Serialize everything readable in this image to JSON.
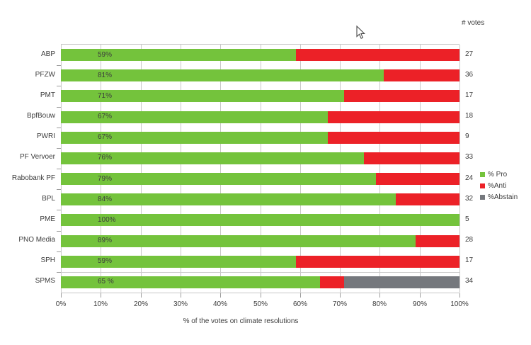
{
  "header": {
    "votes_label": "# votes"
  },
  "axis": {
    "x_title": "% of the votes on climate resolutions",
    "x_ticks": [
      "0%",
      "10%",
      "20%",
      "30%",
      "40%",
      "50%",
      "60%",
      "70%",
      "80%",
      "90%",
      "100%"
    ]
  },
  "legend": {
    "position": "right",
    "items": [
      {
        "label": "% Pro",
        "color": "#74c33c"
      },
      {
        "label": "%Anti",
        "color": "#ec2127"
      },
      {
        "label": "%Abstain",
        "color": "#75787d"
      }
    ]
  },
  "chart_data": {
    "type": "bar",
    "orientation": "horizontal",
    "stacked": true,
    "title": "",
    "xlabel": "% of the votes on climate resolutions",
    "ylabel": "",
    "xlim": [
      0,
      100
    ],
    "grid": "vertical every 10%",
    "legend_position": "right",
    "categories": [
      "ABP",
      "PFZW",
      "PMT",
      "BpfBouw",
      "PWRI",
      "PF Vervoer",
      "Rabobank PF",
      "BPL",
      "PME",
      "PNO Media",
      "SPH",
      "SPMS"
    ],
    "series": [
      {
        "name": "% Pro",
        "color": "#74c33c",
        "values": [
          59,
          81,
          71,
          67,
          67,
          76,
          79,
          84,
          100,
          89,
          59,
          65
        ]
      },
      {
        "name": "%Anti",
        "color": "#ec2127",
        "values": [
          41,
          19,
          29,
          33,
          33,
          24,
          21,
          16,
          0,
          11,
          41,
          6
        ]
      },
      {
        "name": "%Abstain",
        "color": "#75787d",
        "values": [
          0,
          0,
          0,
          0,
          0,
          0,
          0,
          0,
          0,
          0,
          0,
          29
        ]
      }
    ],
    "bar_labels": [
      "59%",
      "81%",
      "71%",
      "67%",
      "67%",
      "76%",
      "79%",
      "84%",
      "100%",
      "89%",
      "59%",
      "65 %"
    ],
    "votes": [
      27,
      36,
      17,
      18,
      9,
      33,
      24,
      32,
      5,
      28,
      17,
      34
    ],
    "votes_header": "# votes"
  },
  "colors": {
    "grid": "#c9c9c9",
    "tick": "#9d9d9d",
    "text": "#3c3c3c"
  }
}
